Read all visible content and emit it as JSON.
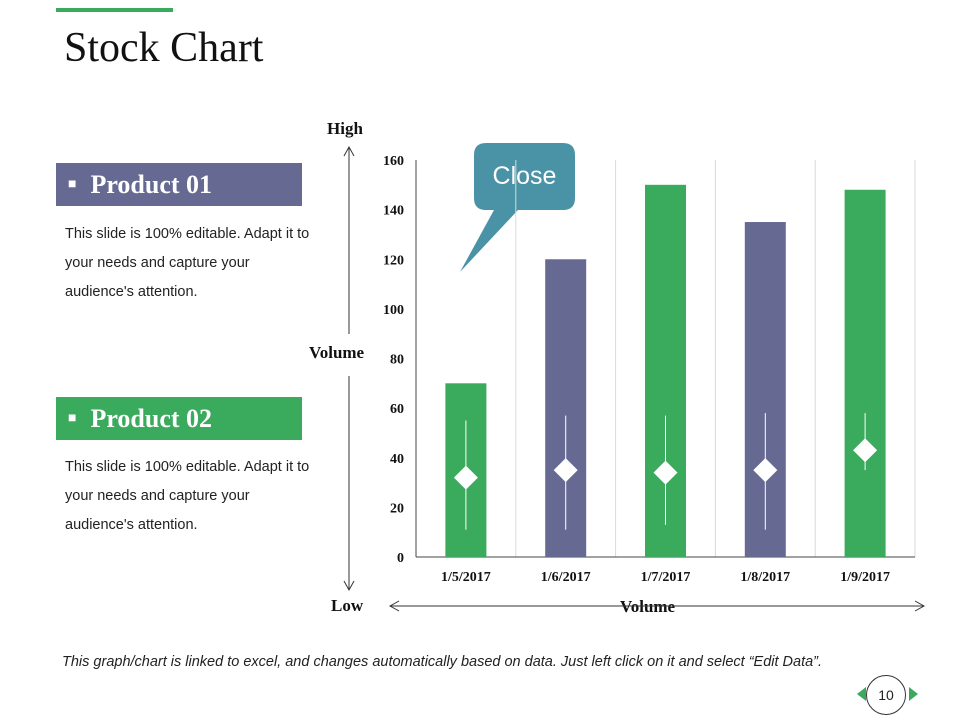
{
  "slide": {
    "title": "Stock Chart",
    "page_number": "10",
    "footnote": "This graph/chart is linked to excel, and changes automatically based on data. Just left click on it and select “Edit Data”."
  },
  "products": [
    {
      "label": "Product 01",
      "description": "This slide is 100% editable. Adapt it to your needs and capture your audience's attention.",
      "color": "#666a93"
    },
    {
      "label": "Product 02",
      "description": "This slide is 100% editable. Adapt it to your needs and capture your audience's attention.",
      "color": "#3aaa5c"
    }
  ],
  "axes": {
    "high": "High",
    "low": "Low",
    "volume_vertical": "Volume",
    "volume_horizontal": "Volume"
  },
  "callout": {
    "label": "Close",
    "color": "#4a93a6"
  },
  "chart_data": {
    "type": "bar",
    "title": "Stock Chart",
    "categories": [
      "1/5/2017",
      "1/6/2017",
      "1/7/2017",
      "1/8/2017",
      "1/9/2017"
    ],
    "yticks": [
      0,
      20,
      40,
      60,
      80,
      100,
      120,
      140,
      160
    ],
    "ylim": [
      0,
      160
    ],
    "volume": [
      70,
      120,
      150,
      135,
      148
    ],
    "bar_colors": [
      "#3aaa5c",
      "#666a93",
      "#3aaa5c",
      "#666a93",
      "#3aaa5c"
    ],
    "stock": {
      "high": [
        55,
        57,
        57,
        58,
        58
      ],
      "low": [
        11,
        11,
        13,
        11,
        35
      ],
      "close": [
        32,
        35,
        34,
        35,
        43
      ]
    },
    "grid": "vertical",
    "ylabel": "Volume",
    "xlabel": "Volume"
  }
}
